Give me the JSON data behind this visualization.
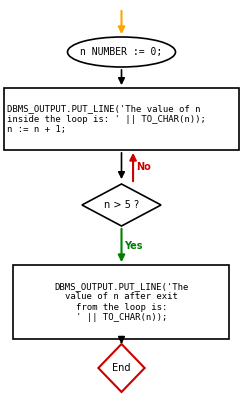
{
  "bg_color": "#ffffff",
  "arrow_color_orange": "#FFA500",
  "arrow_color_black": "#000000",
  "arrow_color_red": "#cc0000",
  "arrow_color_green": "#008000",
  "ellipse1_text": "n NUMBER := 0;",
  "rect1_line1": "DBMS_OUTPUT.PUT_LINE('The value of n",
  "rect1_line2": "inside the loop is: ' || TO_CHAR(n));",
  "rect1_line3": "n := n + 1;",
  "diamond_text": "n > 5 ?",
  "rect2_line1": "DBMS_OUTPUT.PUT_LINE('The",
  "rect2_line2": "value of n after exit",
  "rect2_line3": "from the loop is:",
  "rect2_line4": "' || TO_CHAR(n));",
  "end_text": "End",
  "no_label": "No",
  "yes_label": "Yes",
  "ellipse1_color": "#ffffff",
  "ellipse1_border": "#000000",
  "rect1_color": "#ffffff",
  "rect1_border": "#000000",
  "diamond_color": "#ffffff",
  "diamond_border": "#000000",
  "rect2_color": "#ffffff",
  "rect2_border": "#000000",
  "end_color": "#ffffff",
  "end_border": "#cc0000",
  "fontsize": 7,
  "fontsize_small": 6.5
}
